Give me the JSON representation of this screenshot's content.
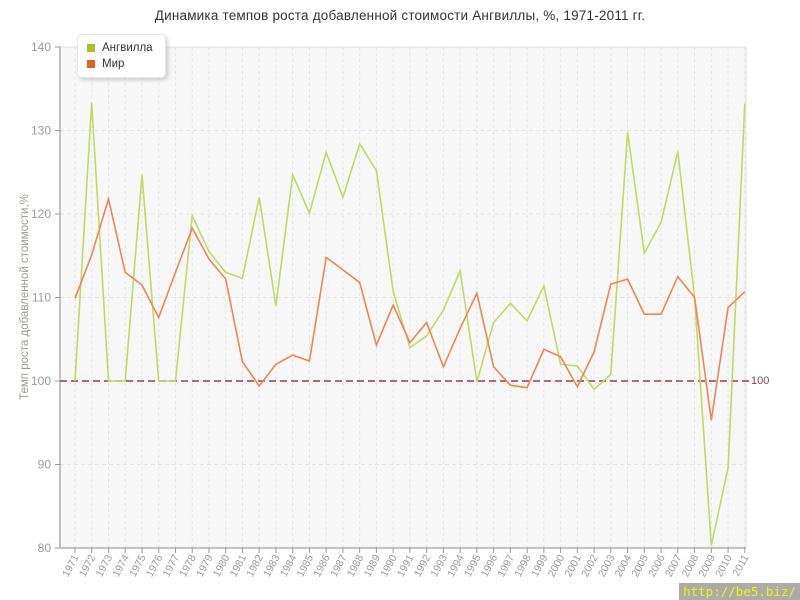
{
  "chart_data": {
    "type": "line",
    "title": "Динамика темпов роста добавленной стоимости Ангвиллы, %, 1971-2011 гг.",
    "ylabel": "Темп роста добавленной стоимости,%",
    "xlabel": "",
    "x": [
      1971,
      1972,
      1973,
      1974,
      1975,
      1976,
      1977,
      1978,
      1979,
      1980,
      1981,
      1982,
      1983,
      1984,
      1985,
      1986,
      1987,
      1988,
      1989,
      1990,
      1991,
      1992,
      1993,
      1994,
      1995,
      1996,
      1997,
      1998,
      1999,
      2000,
      2001,
      2002,
      2003,
      2004,
      2005,
      2006,
      2007,
      2008,
      2009,
      2010,
      2011
    ],
    "series": [
      {
        "name": "Ангвилла",
        "color": "#a6c71f",
        "line_color": "#c0da64",
        "values": [
          100,
          133.3,
          100,
          100,
          124.7,
          100,
          100,
          119.8,
          115.5,
          113.0,
          112.3,
          122.0,
          109.0,
          124.7,
          120.1,
          127.4,
          122.0,
          128.4,
          125.2,
          110.7,
          104.0,
          105.4,
          108.5,
          113.2,
          99.9,
          107.0,
          109.3,
          107.2,
          111.4,
          102.0,
          101.8,
          99.0,
          100.8,
          129.8,
          115.3,
          119.0,
          127.5,
          110.0,
          80.3,
          89.6,
          133.2
        ]
      },
      {
        "name": "Мир",
        "color": "#e0641f",
        "line_color": "#e98757",
        "values": [
          109.9,
          115.1,
          121.8,
          113.0,
          111.5,
          107.6,
          113.0,
          118.3,
          114.6,
          112.2,
          102.3,
          99.4,
          102.0,
          103.1,
          102.4,
          114.8,
          113.3,
          111.8,
          104.3,
          109.1,
          104.6,
          107.0,
          101.7,
          106.3,
          110.5,
          101.7,
          99.5,
          99.2,
          103.8,
          102.9,
          99.3,
          103.5,
          111.6,
          112.2,
          108.0,
          108.0,
          112.5,
          110.0,
          95.3,
          108.8,
          110.7
        ]
      }
    ],
    "ylim": [
      80,
      140
    ],
    "yticks": [
      80,
      90,
      100,
      110,
      120,
      130,
      140
    ],
    "grid": true,
    "legend_position": "top-left",
    "reference_line": {
      "value": 100,
      "label": "100",
      "color": "#993a4d"
    }
  },
  "watermark": {
    "text": "http://be5.biz/",
    "bg": "#ababab",
    "color": "#f2f400"
  }
}
